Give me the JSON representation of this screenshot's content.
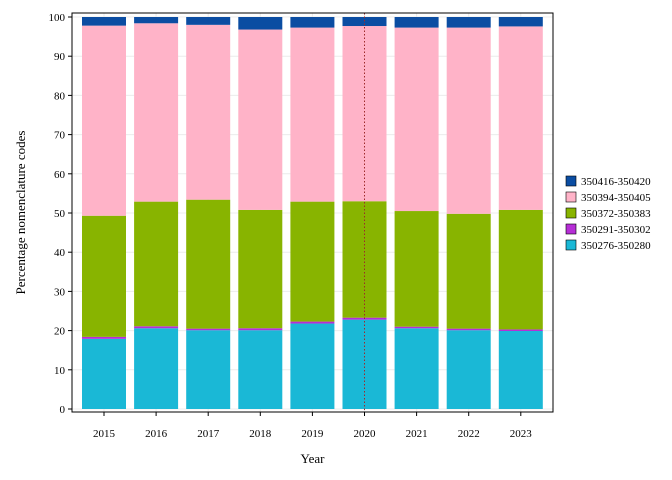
{
  "chart_data": {
    "type": "bar",
    "stacked": true,
    "xlabel": "Year",
    "ylabel": "Percentage nomenclature codes",
    "ylim": [
      0,
      100
    ],
    "yticks": [
      0,
      10,
      20,
      30,
      40,
      50,
      60,
      70,
      80,
      90,
      100
    ],
    "categories": [
      "2015",
      "2016",
      "2017",
      "2018",
      "2019",
      "2020",
      "2021",
      "2022",
      "2023"
    ],
    "highlight_category": "2020",
    "grid": true,
    "legend_position": "right",
    "series": [
      {
        "name": "350276-350280",
        "color": "#1ab8d6",
        "values": [
          17.9,
          20.6,
          20.1,
          20.1,
          21.8,
          22.8,
          20.6,
          20.1,
          19.9
        ]
      },
      {
        "name": "350291-350302",
        "color": "#b62ed6",
        "values": [
          0.5,
          0.5,
          0.4,
          0.5,
          0.5,
          0.5,
          0.4,
          0.4,
          0.4
        ]
      },
      {
        "name": "350372-350383",
        "color": "#88b400",
        "values": [
          30.9,
          31.8,
          32.9,
          30.2,
          30.6,
          29.7,
          29.5,
          29.3,
          30.5
        ]
      },
      {
        "name": "350394-350405",
        "color": "#ffb3c8",
        "values": [
          48.5,
          45.5,
          44.6,
          46.0,
          44.4,
          44.7,
          46.8,
          47.5,
          46.8
        ]
      },
      {
        "name": "350416-350420",
        "color": "#0b4da2",
        "values": [
          2.2,
          1.6,
          2.0,
          3.2,
          2.7,
          2.3,
          2.7,
          2.7,
          2.4
        ]
      }
    ]
  }
}
